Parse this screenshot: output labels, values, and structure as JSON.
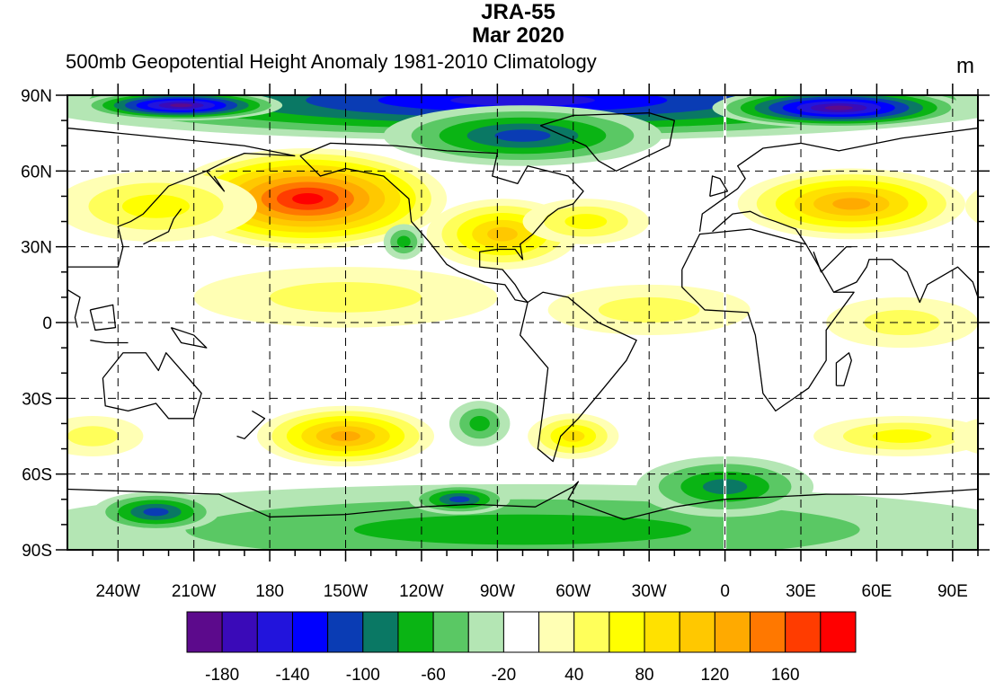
{
  "header": {
    "title": "JRA-55",
    "date": "Mar 2020",
    "subtitle": "500mb Geopotential Height Anomaly 1981-2010 Climatology",
    "units": "m"
  },
  "chart_data": {
    "type": "heatmap",
    "projection": "equirectangular",
    "lon_range": [
      -260,
      100
    ],
    "lat_range": [
      -90,
      90
    ],
    "grid": true,
    "lat_ticks": [
      {
        "value": 90,
        "label": "90N"
      },
      {
        "value": 60,
        "label": "60N"
      },
      {
        "value": 30,
        "label": "30N"
      },
      {
        "value": 0,
        "label": "0"
      },
      {
        "value": -30,
        "label": "30S"
      },
      {
        "value": -60,
        "label": "60S"
      },
      {
        "value": -90,
        "label": "90S"
      }
    ],
    "lon_ticks": [
      {
        "value": -240,
        "label": "240W"
      },
      {
        "value": -210,
        "label": "210W"
      },
      {
        "value": -180,
        "label": "180"
      },
      {
        "value": -150,
        "label": "150W"
      },
      {
        "value": -120,
        "label": "120W"
      },
      {
        "value": -90,
        "label": "90W"
      },
      {
        "value": -60,
        "label": "60W"
      },
      {
        "value": -30,
        "label": "30W"
      },
      {
        "value": 0,
        "label": "0"
      },
      {
        "value": 30,
        "label": "30E"
      },
      {
        "value": 60,
        "label": "60E"
      },
      {
        "value": 90,
        "label": "90E"
      }
    ],
    "colorbar": {
      "levels": [
        -180,
        -160,
        -140,
        -120,
        -100,
        -80,
        -60,
        -40,
        -20,
        20,
        40,
        60,
        80,
        100,
        120,
        140,
        160,
        180
      ],
      "labels": [
        "-180",
        "-140",
        "-100",
        "-60",
        "-20",
        "40",
        "80",
        "120",
        "160"
      ],
      "label_levels": [
        -180,
        -140,
        -100,
        -60,
        -20,
        40,
        80,
        120,
        160
      ],
      "colors": [
        "#5c0a8c",
        "#3a0ab8",
        "#2214dc",
        "#0000ff",
        "#0a3cb4",
        "#0a7864",
        "#0ab414",
        "#5ac864",
        "#b4e6b4",
        "#ffffff",
        "#ffffb4",
        "#ffff5a",
        "#ffff00",
        "#ffe100",
        "#ffc800",
        "#ffaa00",
        "#ff7800",
        "#ff3c00",
        "#ff0000"
      ]
    },
    "anomaly_features": [
      {
        "region": "arctic-band",
        "lon": -80,
        "lat": 88,
        "rlon": 200,
        "rlat": 16,
        "peak": -140
      },
      {
        "region": "arctic-siberia",
        "lon": -215,
        "lat": 86,
        "rlon": 40,
        "rlat": 6,
        "peak": -180
      },
      {
        "region": "arctic-europe",
        "lon": 45,
        "lat": 85,
        "rlon": 50,
        "rlat": 8,
        "peak": -180
      },
      {
        "region": "canadian-arctic",
        "lon": -80,
        "lat": 74,
        "rlon": 55,
        "rlat": 12,
        "peak": -100
      },
      {
        "region": "north-pacific",
        "lon": -165,
        "lat": 49,
        "rlon": 55,
        "rlat": 20,
        "peak": 180
      },
      {
        "region": "east-asia",
        "lon": -225,
        "lat": 46,
        "rlon": 40,
        "rlat": 14,
        "peak": 60
      },
      {
        "region": "north-america",
        "lon": -88,
        "lat": 35,
        "rlon": 30,
        "rlat": 14,
        "peak": 100
      },
      {
        "region": "north-atlantic",
        "lon": -55,
        "lat": 40,
        "rlon": 25,
        "rlat": 9,
        "peak": 60
      },
      {
        "region": "eurasia",
        "lon": 50,
        "lat": 47,
        "rlon": 45,
        "rlat": 14,
        "peak": 120
      },
      {
        "region": "northeast-pacific-low",
        "lon": -127,
        "lat": 32,
        "rlon": 8,
        "rlat": 7,
        "peak": -60
      },
      {
        "region": "tropical-pacific",
        "lon": -150,
        "lat": 10,
        "rlon": 60,
        "rlat": 12,
        "peak": 40
      },
      {
        "region": "tropical-atlantic",
        "lon": -30,
        "lat": 5,
        "rlon": 40,
        "rlat": 10,
        "peak": 40
      },
      {
        "region": "indian-ocean",
        "lon": 70,
        "lat": 0,
        "rlon": 30,
        "rlat": 10,
        "peak": 40
      },
      {
        "region": "south-pacific-high",
        "lon": -150,
        "lat": -45,
        "rlon": 35,
        "rlat": 12,
        "peak": 120
      },
      {
        "region": "south-america-high",
        "lon": -60,
        "lat": -45,
        "rlon": 18,
        "rlat": 9,
        "peak": 80
      },
      {
        "region": "southeast-pacific-low",
        "lon": -97,
        "lat": -40,
        "rlon": 12,
        "rlat": 9,
        "peak": -60
      },
      {
        "region": "south-indian",
        "lon": 70,
        "lat": -45,
        "rlon": 35,
        "rlat": 8,
        "peak": 60
      },
      {
        "region": "southwest-indian",
        "lon": -250,
        "lat": -45,
        "rlon": 20,
        "rlat": 8,
        "peak": 40
      },
      {
        "region": "antarctic-band",
        "lon": -80,
        "lat": -82,
        "rlon": 200,
        "rlat": 18,
        "peak": -60
      },
      {
        "region": "antarctic-west-pacific",
        "lon": -225,
        "lat": -75,
        "rlon": 25,
        "rlat": 8,
        "peak": -100
      },
      {
        "region": "amundsen-sea",
        "lon": -105,
        "lat": -70,
        "rlon": 20,
        "rlat": 6,
        "peak": -100
      },
      {
        "region": "south-atlantic-low",
        "lon": 0,
        "lat": -65,
        "rlon": 35,
        "rlat": 12,
        "peak": -80
      }
    ]
  }
}
